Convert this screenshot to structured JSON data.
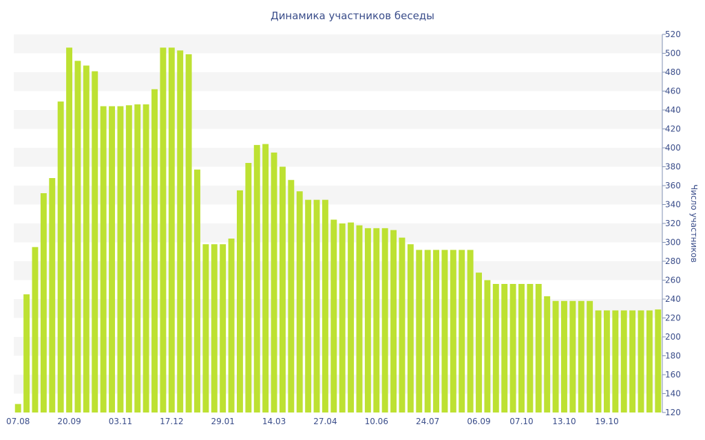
{
  "chart_data": {
    "type": "bar",
    "title": "Динамика участников беседы",
    "ylabel": "Число участников",
    "xlabel": "",
    "ylim": [
      120,
      520
    ],
    "ytick_step": 20,
    "x_tick_labels": [
      {
        "index": 0,
        "label": "07.08"
      },
      {
        "index": 6,
        "label": "20.09"
      },
      {
        "index": 12,
        "label": "03.11"
      },
      {
        "index": 18,
        "label": "17.12"
      },
      {
        "index": 24,
        "label": "29.01"
      },
      {
        "index": 30,
        "label": "14.03"
      },
      {
        "index": 36,
        "label": "27.04"
      },
      {
        "index": 42,
        "label": "10.06"
      },
      {
        "index": 48,
        "label": "24.07"
      },
      {
        "index": 54,
        "label": "06.09"
      },
      {
        "index": 59,
        "label": "07.10"
      },
      {
        "index": 64,
        "label": "13.10"
      },
      {
        "index": 69,
        "label": "19.10"
      }
    ],
    "grid": "alternating-bands",
    "axis_position": "right",
    "bar_color": "#bde132",
    "values": [
      129,
      245,
      295,
      352,
      368,
      449,
      506,
      492,
      487,
      481,
      444,
      444,
      444,
      445,
      446,
      446,
      462,
      506,
      506,
      503,
      499,
      377,
      298,
      298,
      298,
      304,
      355,
      384,
      403,
      404,
      395,
      380,
      366,
      354,
      345,
      345,
      345,
      324,
      320,
      321,
      318,
      315,
      315,
      315,
      313,
      305,
      298,
      292,
      292,
      292,
      292,
      292,
      292,
      292,
      268,
      260,
      256,
      256,
      256,
      256,
      256,
      256,
      243,
      238,
      238,
      238,
      238,
      238,
      228,
      228,
      228,
      228,
      228,
      228,
      228,
      229
    ]
  }
}
